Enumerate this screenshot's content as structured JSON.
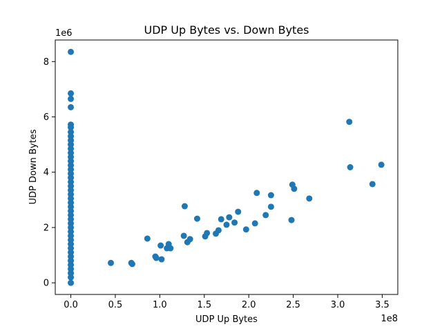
{
  "chart_data": {
    "type": "scatter",
    "title": "UDP Up Bytes vs. Down Bytes",
    "xlabel": "UDP Up Bytes",
    "ylabel": "UDP Down Bytes",
    "x_scale_label": "1e8",
    "y_scale_label": "1e6",
    "xlim": [
      -0.175,
      3.675
    ],
    "ylim": [
      -0.42,
      8.78
    ],
    "x_ticks": [
      0.0,
      0.5,
      1.0,
      1.5,
      2.0,
      2.5,
      3.0,
      3.5
    ],
    "x_tick_labels": [
      "0.0",
      "0.5",
      "1.0",
      "1.5",
      "2.0",
      "2.5",
      "3.0",
      "3.5"
    ],
    "y_ticks": [
      0,
      2,
      4,
      6,
      8
    ],
    "y_tick_labels": [
      "0",
      "2",
      "4",
      "6",
      "8"
    ],
    "grid": false,
    "marker_color": "#1f77b4",
    "series": [
      {
        "points": [
          [
            0.0,
            8.35
          ],
          [
            0.0,
            6.85
          ],
          [
            0.0,
            6.65
          ],
          [
            0.0,
            6.35
          ],
          [
            0.0,
            5.72
          ],
          [
            0.0,
            5.62
          ],
          [
            0.0,
            5.45
          ],
          [
            0.0,
            5.3
          ],
          [
            0.0,
            5.15
          ],
          [
            0.0,
            5.0
          ],
          [
            0.0,
            4.85
          ],
          [
            0.0,
            4.7
          ],
          [
            0.0,
            4.55
          ],
          [
            0.0,
            4.4
          ],
          [
            0.0,
            4.25
          ],
          [
            0.0,
            4.1
          ],
          [
            0.0,
            3.95
          ],
          [
            0.0,
            3.8
          ],
          [
            0.0,
            3.65
          ],
          [
            0.0,
            3.5
          ],
          [
            0.0,
            3.35
          ],
          [
            0.0,
            3.2
          ],
          [
            0.0,
            3.05
          ],
          [
            0.0,
            2.9
          ],
          [
            0.0,
            2.75
          ],
          [
            0.0,
            2.6
          ],
          [
            0.0,
            2.45
          ],
          [
            0.0,
            2.3
          ],
          [
            0.0,
            2.15
          ],
          [
            0.0,
            2.0
          ],
          [
            0.0,
            1.85
          ],
          [
            0.0,
            1.7
          ],
          [
            0.0,
            1.55
          ],
          [
            0.0,
            1.4
          ],
          [
            0.0,
            1.25
          ],
          [
            0.0,
            1.1
          ],
          [
            0.0,
            0.95
          ],
          [
            0.0,
            0.8
          ],
          [
            0.0,
            0.65
          ],
          [
            0.0,
            0.5
          ],
          [
            0.0,
            0.35
          ],
          [
            0.0,
            0.2
          ],
          [
            0.0,
            0.0
          ],
          [
            0.45,
            0.72
          ],
          [
            0.68,
            0.72
          ],
          [
            0.69,
            0.68
          ],
          [
            0.86,
            1.6
          ],
          [
            0.95,
            0.95
          ],
          [
            0.96,
            0.9
          ],
          [
            1.01,
            1.35
          ],
          [
            1.02,
            0.85
          ],
          [
            1.08,
            1.25
          ],
          [
            1.1,
            1.4
          ],
          [
            1.12,
            1.25
          ],
          [
            1.27,
            1.7
          ],
          [
            1.28,
            2.77
          ],
          [
            1.31,
            1.47
          ],
          [
            1.34,
            1.58
          ],
          [
            1.42,
            2.32
          ],
          [
            1.51,
            1.68
          ],
          [
            1.53,
            1.8
          ],
          [
            1.63,
            1.78
          ],
          [
            1.66,
            1.9
          ],
          [
            1.69,
            2.3
          ],
          [
            1.75,
            2.1
          ],
          [
            1.78,
            2.37
          ],
          [
            1.84,
            2.18
          ],
          [
            1.88,
            2.57
          ],
          [
            1.97,
            1.93
          ],
          [
            2.07,
            2.15
          ],
          [
            2.09,
            3.25
          ],
          [
            2.19,
            2.45
          ],
          [
            2.25,
            2.75
          ],
          [
            2.25,
            3.17
          ],
          [
            2.48,
            2.27
          ],
          [
            2.49,
            3.55
          ],
          [
            2.51,
            3.4
          ],
          [
            2.68,
            3.05
          ],
          [
            3.13,
            5.82
          ],
          [
            3.14,
            4.18
          ],
          [
            3.39,
            3.57
          ],
          [
            3.49,
            4.27
          ]
        ]
      }
    ]
  }
}
